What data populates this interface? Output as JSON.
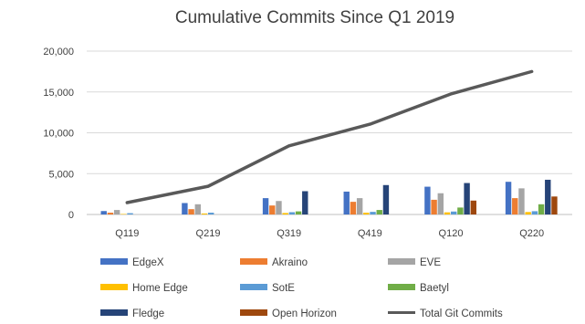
{
  "chart_data": {
    "type": "bar",
    "title": "Cumulative Commits Since Q1 2019",
    "categories": [
      "Q119",
      "Q219",
      "Q319",
      "Q419",
      "Q120",
      "Q220"
    ],
    "ylim": [
      0,
      20000
    ],
    "yticks": [
      0,
      5000,
      10000,
      15000,
      20000
    ],
    "ytick_labels": [
      "0",
      "5,000",
      "10,000",
      "15,000",
      "20,000"
    ],
    "grid": true,
    "legend_position": "bottom",
    "series": [
      {
        "name": "EdgeX",
        "color": "#4472C4",
        "values": [
          420,
          1400,
          2000,
          2800,
          3400,
          4000
        ]
      },
      {
        "name": "Akraino",
        "color": "#ED7D31",
        "values": [
          220,
          650,
          1100,
          1550,
          1800,
          2000
        ]
      },
      {
        "name": "EVE",
        "color": "#A5A5A5",
        "values": [
          550,
          1250,
          1650,
          2000,
          2600,
          3200
        ]
      },
      {
        "name": "Home Edge",
        "color": "#FFC000",
        "values": [
          60,
          120,
          180,
          220,
          260,
          300
        ]
      },
      {
        "name": "SotE",
        "color": "#5B9BD5",
        "values": [
          160,
          220,
          280,
          320,
          360,
          400
        ]
      },
      {
        "name": "Baetyl",
        "color": "#70AD47",
        "values": [
          0,
          0,
          380,
          550,
          850,
          1250
        ]
      },
      {
        "name": "Fledge",
        "color": "#264478",
        "values": [
          0,
          0,
          2850,
          3600,
          3850,
          4250
        ]
      },
      {
        "name": "Open Horizon",
        "color": "#9E480E",
        "values": [
          0,
          0,
          0,
          0,
          1700,
          2200
        ]
      }
    ],
    "line": {
      "name": "Total Git Commits",
      "color": "#595959",
      "values": [
        1450,
        3450,
        8400,
        11050,
        14750,
        17500
      ]
    }
  }
}
